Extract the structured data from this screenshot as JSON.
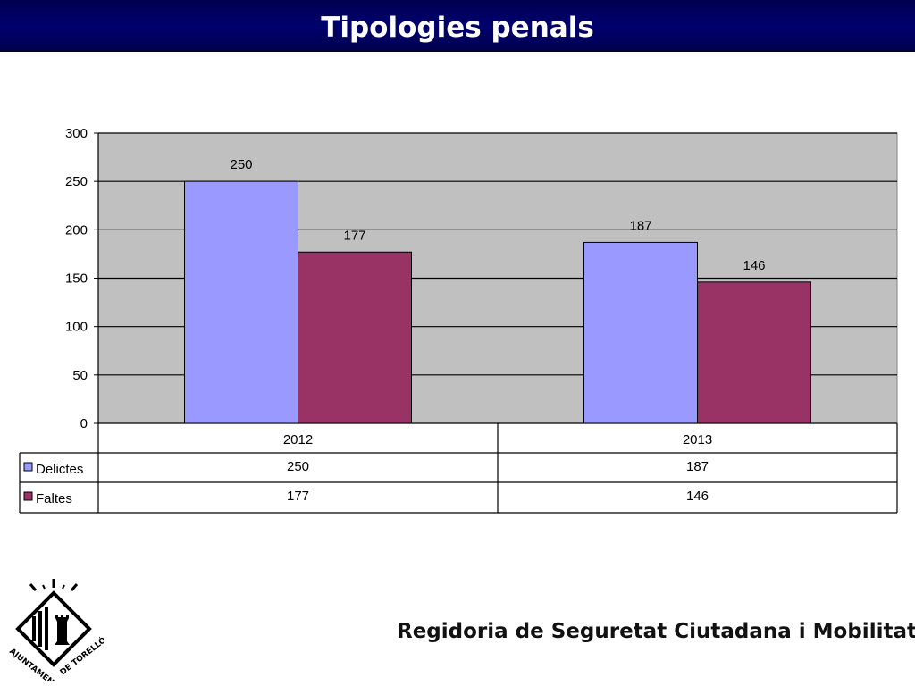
{
  "slide": {
    "title": "Tipologies penals",
    "footer": {
      "part1": "Regidoria de Seguretat",
      "part2": "Ciutadana",
      "part3": "i Mobilitat"
    },
    "logo": {
      "text_left": "AJUNTAMENT",
      "text_right": "DE TORELLÓ"
    }
  },
  "colors": {
    "plot_bg": "#c0c0c0",
    "delictes": "#9999ff",
    "faltes": "#993366"
  },
  "chart_data": {
    "type": "bar",
    "categories": [
      "2012",
      "2013"
    ],
    "series": [
      {
        "name": "Delictes",
        "values": [
          250,
          187
        ]
      },
      {
        "name": "Faltes",
        "values": [
          177,
          146
        ]
      }
    ],
    "ylim": [
      0,
      300
    ],
    "yticks": [
      0,
      50,
      100,
      150,
      200,
      250,
      300
    ],
    "grid": true,
    "data_labels": true,
    "data_table": true
  }
}
